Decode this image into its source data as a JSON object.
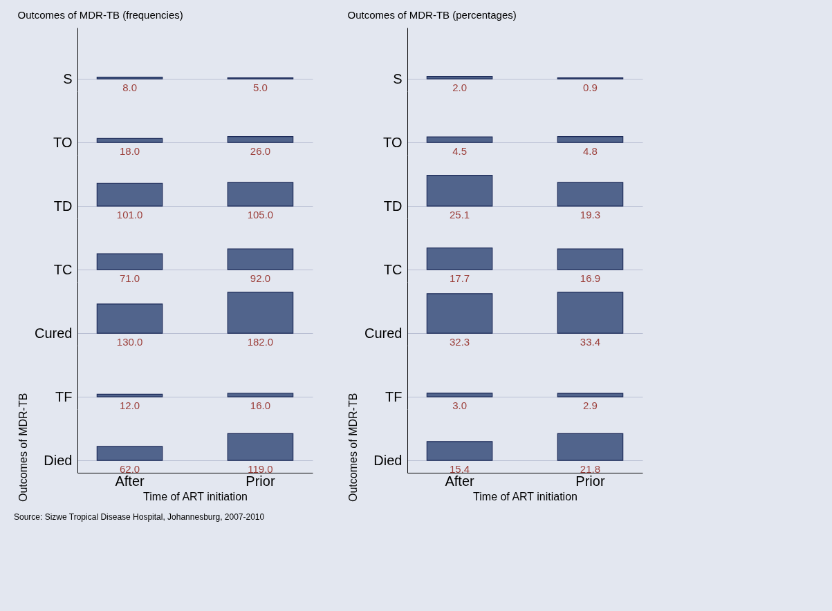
{
  "chart_data": [
    {
      "type": "heatmap",
      "title": "Outcomes of MDR-TB (frequencies)",
      "xlabel": "Time of ART initiation",
      "ylabel": "Outcomes of MDR-TB",
      "categories": [
        "After",
        "Prior"
      ],
      "y_categories": [
        "S",
        "TO",
        "TD",
        "TC",
        "Cured",
        "TF",
        "Died"
      ],
      "cells": [
        [
          8,
          5
        ],
        [
          18,
          26
        ],
        [
          101,
          105
        ],
        [
          71,
          92
        ],
        [
          130,
          182
        ],
        [
          12,
          16
        ],
        [
          62,
          119
        ]
      ],
      "cell_labels": [
        [
          "8.0",
          "5.0"
        ],
        [
          "18.0",
          "26.0"
        ],
        [
          "101.0",
          "105.0"
        ],
        [
          "71.0",
          "92.0"
        ],
        [
          "130.0",
          "182.0"
        ],
        [
          "12.0",
          "16.0"
        ],
        [
          "62.0",
          "119.0"
        ]
      ],
      "color": "#51648c",
      "grid": "y",
      "annotations": [
        "Source: Sizwe Tropical Disease Hospital, Johannesburg, 2007-2010"
      ]
    },
    {
      "type": "heatmap",
      "title": "Outcomes of MDR-TB (percentages)",
      "xlabel": "Time of ART initiation",
      "ylabel": "Outcomes of MDR-TB",
      "categories": [
        "After",
        "Prior"
      ],
      "y_categories": [
        "S",
        "TO",
        "TD",
        "TC",
        "Cured",
        "TF",
        "Died"
      ],
      "cells": [
        [
          2.0,
          0.9
        ],
        [
          4.5,
          4.8
        ],
        [
          25.1,
          19.3
        ],
        [
          17.7,
          16.9
        ],
        [
          32.3,
          33.4
        ],
        [
          3.0,
          2.9
        ],
        [
          15.4,
          21.8
        ]
      ],
      "cell_labels": [
        [
          "2.0",
          "0.9"
        ],
        [
          "4.5",
          "4.8"
        ],
        [
          "25.1",
          "19.3"
        ],
        [
          "17.7",
          "16.9"
        ],
        [
          "32.3",
          "33.4"
        ],
        [
          "3.0",
          "2.9"
        ],
        [
          "15.4",
          "21.8"
        ]
      ],
      "color": "#51648c",
      "grid": "y"
    }
  ]
}
